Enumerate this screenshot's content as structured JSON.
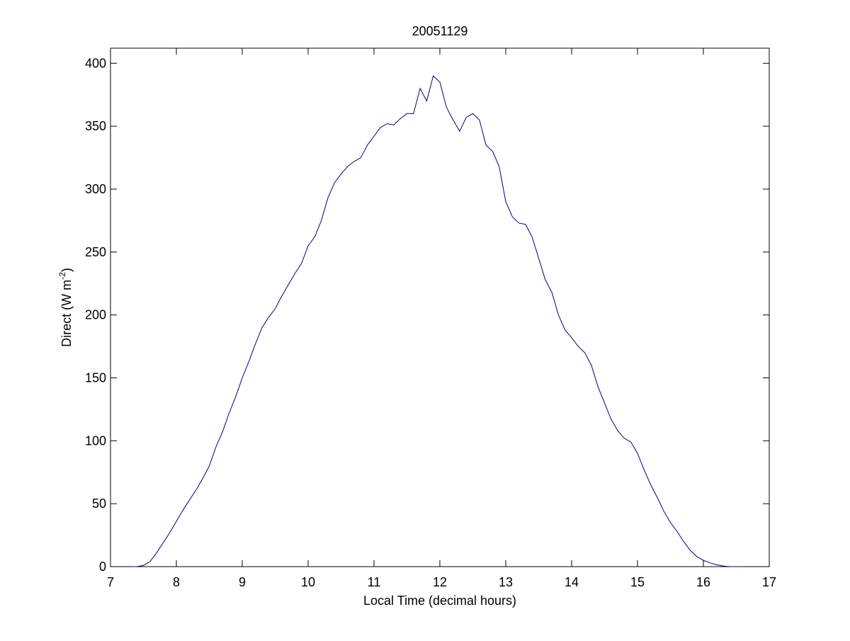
{
  "chart_data": {
    "type": "line",
    "title": "20051129",
    "xlabel": "Local Time (decimal hours)",
    "ylabel": [
      "Direct (W m",
      "-2",
      ")"
    ],
    "x": [
      7.3,
      7.4,
      7.5,
      7.6,
      7.7,
      7.8,
      7.9,
      8.0,
      8.1,
      8.2,
      8.3,
      8.4,
      8.5,
      8.6,
      8.7,
      8.8,
      8.9,
      9.0,
      9.1,
      9.2,
      9.3,
      9.4,
      9.5,
      9.6,
      9.7,
      9.8,
      9.9,
      10.0,
      10.1,
      10.2,
      10.3,
      10.4,
      10.5,
      10.6,
      10.7,
      10.8,
      10.9,
      11.0,
      11.1,
      11.2,
      11.3,
      11.4,
      11.5,
      11.6,
      11.7,
      11.8,
      11.9,
      12.0,
      12.1,
      12.2,
      12.3,
      12.4,
      12.5,
      12.6,
      12.7,
      12.8,
      12.9,
      13.0,
      13.1,
      13.2,
      13.3,
      13.4,
      13.5,
      13.6,
      13.7,
      13.8,
      13.9,
      14.0,
      14.1,
      14.2,
      14.3,
      14.4,
      14.5,
      14.6,
      14.7,
      14.8,
      14.9,
      15.0,
      15.1,
      15.2,
      15.3,
      15.4,
      15.5,
      15.6,
      15.7,
      15.8,
      15.9,
      16.0,
      16.1,
      16.2,
      16.3,
      16.4,
      16.5,
      16.6
    ],
    "series": [
      {
        "name": "Direct",
        "color": "#000080",
        "values": [
          0,
          0,
          1,
          4,
          11,
          19,
          27,
          36,
          45,
          53,
          61,
          70,
          80,
          95,
          107,
          122,
          135,
          150,
          163,
          177,
          190,
          198,
          205,
          215,
          224,
          233,
          241,
          255,
          262,
          275,
          293,
          305,
          312,
          318,
          322,
          325,
          335,
          342,
          349,
          352,
          351,
          356,
          360,
          360,
          380,
          370,
          390,
          385,
          365,
          355,
          346,
          357,
          360,
          355,
          335,
          330,
          318,
          290,
          278,
          273,
          272,
          262,
          245,
          228,
          218,
          200,
          188,
          182,
          175,
          170,
          160,
          143,
          130,
          117,
          108,
          102,
          99,
          90,
          77,
          65,
          55,
          44,
          35,
          28,
          20,
          13,
          8,
          5,
          3,
          1.5,
          0.5,
          0,
          0,
          0
        ]
      }
    ],
    "xlim": [
      7,
      17
    ],
    "xticks": [
      7,
      8,
      9,
      10,
      11,
      12,
      13,
      14,
      15,
      16,
      17
    ],
    "ylim": [
      0,
      412
    ],
    "yticks": [
      0,
      50,
      100,
      150,
      200,
      250,
      300,
      350,
      400
    ]
  }
}
